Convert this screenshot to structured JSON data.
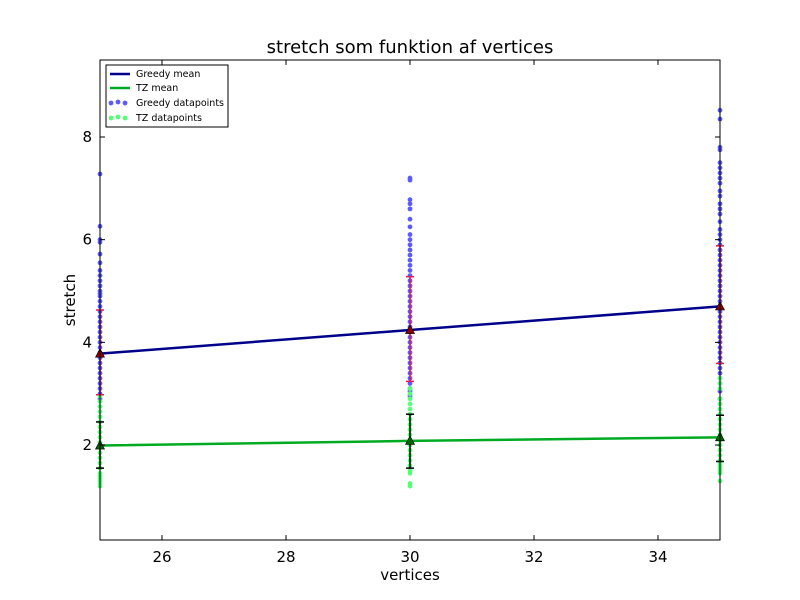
{
  "chart_data": {
    "type": "scatter",
    "title": "stretch som funktion af vertices",
    "xlabel": "vertices",
    "ylabel": "stretch",
    "xlim": [
      25,
      35
    ],
    "ylim": [
      0.15,
      9.5
    ],
    "xticks": [
      26,
      28,
      30,
      32,
      34
    ],
    "yticks": [
      2,
      4,
      6,
      8
    ],
    "grid": false,
    "legend_position": "top-left",
    "legend": [
      "Greedy mean",
      "TZ mean",
      "Greedy datapoints",
      "TZ datapoints"
    ],
    "x": [
      25,
      30,
      35
    ],
    "series": [
      {
        "name": "Greedy mean",
        "kind": "line",
        "color": "#00008b",
        "values": [
          3.78,
          4.24,
          4.7
        ],
        "errorbar_color": "#e8174f",
        "errorbar_low": [
          2.98,
          3.24,
          3.59
        ],
        "errorbar_high": [
          4.63,
          5.28,
          5.88
        ]
      },
      {
        "name": "TZ mean",
        "kind": "line",
        "color": "#00aa22",
        "values": [
          1.99,
          2.08,
          2.15
        ],
        "errorbar_color": "#000000",
        "errorbar_low": [
          1.55,
          1.55,
          1.68
        ],
        "errorbar_high": [
          2.45,
          2.6,
          2.58
        ]
      },
      {
        "name": "Greedy datapoints",
        "kind": "points",
        "color": "#5b5bff",
        "points": {
          "25": [
            7.28,
            6.26,
            6.0,
            5.95,
            5.72,
            5.55,
            5.4,
            5.3,
            5.2,
            5.1,
            5.0,
            4.95,
            4.9,
            4.8,
            4.7,
            4.6,
            4.5,
            4.4,
            4.3,
            4.2,
            4.1,
            4.0,
            3.9,
            3.8,
            3.7,
            3.6,
            3.5,
            3.4,
            3.3,
            3.2,
            3.1,
            3.0,
            2.9
          ],
          "30": [
            7.2,
            7.16,
            6.78,
            6.7,
            6.6,
            6.4,
            6.25,
            6.1,
            6.0,
            5.9,
            5.8,
            5.7,
            5.6,
            5.5,
            5.4,
            5.3,
            5.2,
            5.1,
            5.0,
            4.9,
            4.8,
            4.7,
            4.6,
            4.5,
            4.4,
            4.3,
            4.2,
            4.1,
            4.0,
            3.9,
            3.8,
            3.7,
            3.6,
            3.5,
            3.4,
            3.3,
            3.2,
            3.1,
            3.05,
            2.95
          ],
          "35": [
            8.52,
            8.35,
            7.8,
            7.75,
            7.5,
            7.4,
            7.3,
            7.2,
            7.1,
            6.95,
            6.85,
            6.7,
            6.6,
            6.5,
            6.35,
            6.2,
            6.1,
            6.0,
            5.9,
            5.8,
            5.7,
            5.6,
            5.5,
            5.4,
            5.3,
            5.2,
            5.1,
            5.0,
            4.9,
            4.8,
            4.7,
            4.6,
            4.5,
            4.4,
            4.3,
            4.2,
            4.1,
            4.0,
            3.9,
            3.8,
            3.7,
            3.6,
            3.5,
            3.4,
            3.3,
            3.2,
            3.05,
            2.9
          ]
        }
      },
      {
        "name": "TZ datapoints",
        "kind": "points",
        "color": "#55ff77",
        "points": {
          "25": [
            2.95,
            2.85,
            2.75,
            2.65,
            2.55,
            2.45,
            2.35,
            2.25,
            2.15,
            2.05,
            1.95,
            1.85,
            1.75,
            1.65,
            1.55,
            1.45,
            1.4,
            1.35,
            1.3,
            1.25,
            1.2
          ],
          "30": [
            3.1,
            3.0,
            2.9,
            2.8,
            2.7,
            2.6,
            2.5,
            2.4,
            2.3,
            2.2,
            2.1,
            2.0,
            1.9,
            1.8,
            1.7,
            1.6,
            1.5,
            1.45,
            1.25,
            1.2
          ],
          "35": [
            3.3,
            3.2,
            3.1,
            2.9,
            2.8,
            2.7,
            2.6,
            2.5,
            2.4,
            2.3,
            2.2,
            2.1,
            2.0,
            1.9,
            1.8,
            1.7,
            1.65,
            1.6,
            1.55,
            1.5,
            1.45,
            1.3
          ]
        }
      }
    ]
  }
}
